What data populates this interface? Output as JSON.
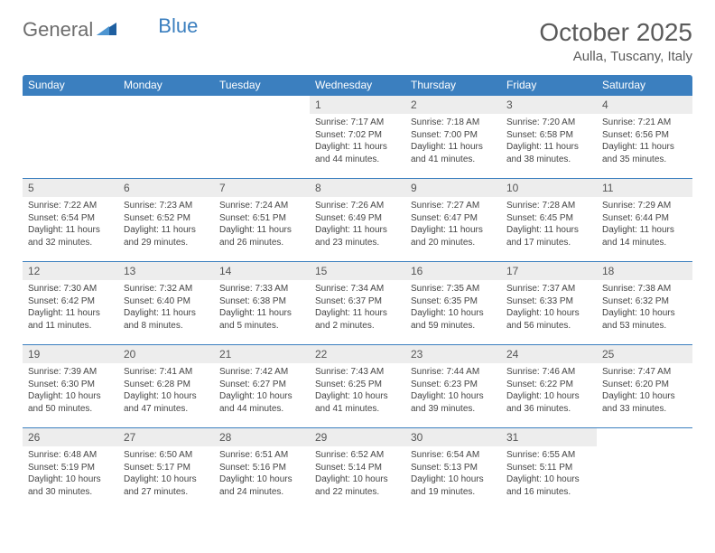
{
  "brand": {
    "name_a": "General",
    "name_b": "Blue"
  },
  "title": "October 2025",
  "location": "Aulla, Tuscany, Italy",
  "colors": {
    "header_bg": "#3b7fbf",
    "header_text": "#ffffff",
    "daynum_bg": "#ededed",
    "text": "#444444",
    "rule": "#3b7fbf",
    "page_bg": "#ffffff"
  },
  "dow": [
    "Sunday",
    "Monday",
    "Tuesday",
    "Wednesday",
    "Thursday",
    "Friday",
    "Saturday"
  ],
  "first_dow": 3,
  "days": [
    {
      "n": 1,
      "sr": "7:17 AM",
      "ss": "7:02 PM",
      "dl": "11 hours and 44 minutes."
    },
    {
      "n": 2,
      "sr": "7:18 AM",
      "ss": "7:00 PM",
      "dl": "11 hours and 41 minutes."
    },
    {
      "n": 3,
      "sr": "7:20 AM",
      "ss": "6:58 PM",
      "dl": "11 hours and 38 minutes."
    },
    {
      "n": 4,
      "sr": "7:21 AM",
      "ss": "6:56 PM",
      "dl": "11 hours and 35 minutes."
    },
    {
      "n": 5,
      "sr": "7:22 AM",
      "ss": "6:54 PM",
      "dl": "11 hours and 32 minutes."
    },
    {
      "n": 6,
      "sr": "7:23 AM",
      "ss": "6:52 PM",
      "dl": "11 hours and 29 minutes."
    },
    {
      "n": 7,
      "sr": "7:24 AM",
      "ss": "6:51 PM",
      "dl": "11 hours and 26 minutes."
    },
    {
      "n": 8,
      "sr": "7:26 AM",
      "ss": "6:49 PM",
      "dl": "11 hours and 23 minutes."
    },
    {
      "n": 9,
      "sr": "7:27 AM",
      "ss": "6:47 PM",
      "dl": "11 hours and 20 minutes."
    },
    {
      "n": 10,
      "sr": "7:28 AM",
      "ss": "6:45 PM",
      "dl": "11 hours and 17 minutes."
    },
    {
      "n": 11,
      "sr": "7:29 AM",
      "ss": "6:44 PM",
      "dl": "11 hours and 14 minutes."
    },
    {
      "n": 12,
      "sr": "7:30 AM",
      "ss": "6:42 PM",
      "dl": "11 hours and 11 minutes."
    },
    {
      "n": 13,
      "sr": "7:32 AM",
      "ss": "6:40 PM",
      "dl": "11 hours and 8 minutes."
    },
    {
      "n": 14,
      "sr": "7:33 AM",
      "ss": "6:38 PM",
      "dl": "11 hours and 5 minutes."
    },
    {
      "n": 15,
      "sr": "7:34 AM",
      "ss": "6:37 PM",
      "dl": "11 hours and 2 minutes."
    },
    {
      "n": 16,
      "sr": "7:35 AM",
      "ss": "6:35 PM",
      "dl": "10 hours and 59 minutes."
    },
    {
      "n": 17,
      "sr": "7:37 AM",
      "ss": "6:33 PM",
      "dl": "10 hours and 56 minutes."
    },
    {
      "n": 18,
      "sr": "7:38 AM",
      "ss": "6:32 PM",
      "dl": "10 hours and 53 minutes."
    },
    {
      "n": 19,
      "sr": "7:39 AM",
      "ss": "6:30 PM",
      "dl": "10 hours and 50 minutes."
    },
    {
      "n": 20,
      "sr": "7:41 AM",
      "ss": "6:28 PM",
      "dl": "10 hours and 47 minutes."
    },
    {
      "n": 21,
      "sr": "7:42 AM",
      "ss": "6:27 PM",
      "dl": "10 hours and 44 minutes."
    },
    {
      "n": 22,
      "sr": "7:43 AM",
      "ss": "6:25 PM",
      "dl": "10 hours and 41 minutes."
    },
    {
      "n": 23,
      "sr": "7:44 AM",
      "ss": "6:23 PM",
      "dl": "10 hours and 39 minutes."
    },
    {
      "n": 24,
      "sr": "7:46 AM",
      "ss": "6:22 PM",
      "dl": "10 hours and 36 minutes."
    },
    {
      "n": 25,
      "sr": "7:47 AM",
      "ss": "6:20 PM",
      "dl": "10 hours and 33 minutes."
    },
    {
      "n": 26,
      "sr": "6:48 AM",
      "ss": "5:19 PM",
      "dl": "10 hours and 30 minutes."
    },
    {
      "n": 27,
      "sr": "6:50 AM",
      "ss": "5:17 PM",
      "dl": "10 hours and 27 minutes."
    },
    {
      "n": 28,
      "sr": "6:51 AM",
      "ss": "5:16 PM",
      "dl": "10 hours and 24 minutes."
    },
    {
      "n": 29,
      "sr": "6:52 AM",
      "ss": "5:14 PM",
      "dl": "10 hours and 22 minutes."
    },
    {
      "n": 30,
      "sr": "6:54 AM",
      "ss": "5:13 PM",
      "dl": "10 hours and 19 minutes."
    },
    {
      "n": 31,
      "sr": "6:55 AM",
      "ss": "5:11 PM",
      "dl": "10 hours and 16 minutes."
    }
  ],
  "labels": {
    "sunrise": "Sunrise:",
    "sunset": "Sunset:",
    "daylight": "Daylight:"
  }
}
